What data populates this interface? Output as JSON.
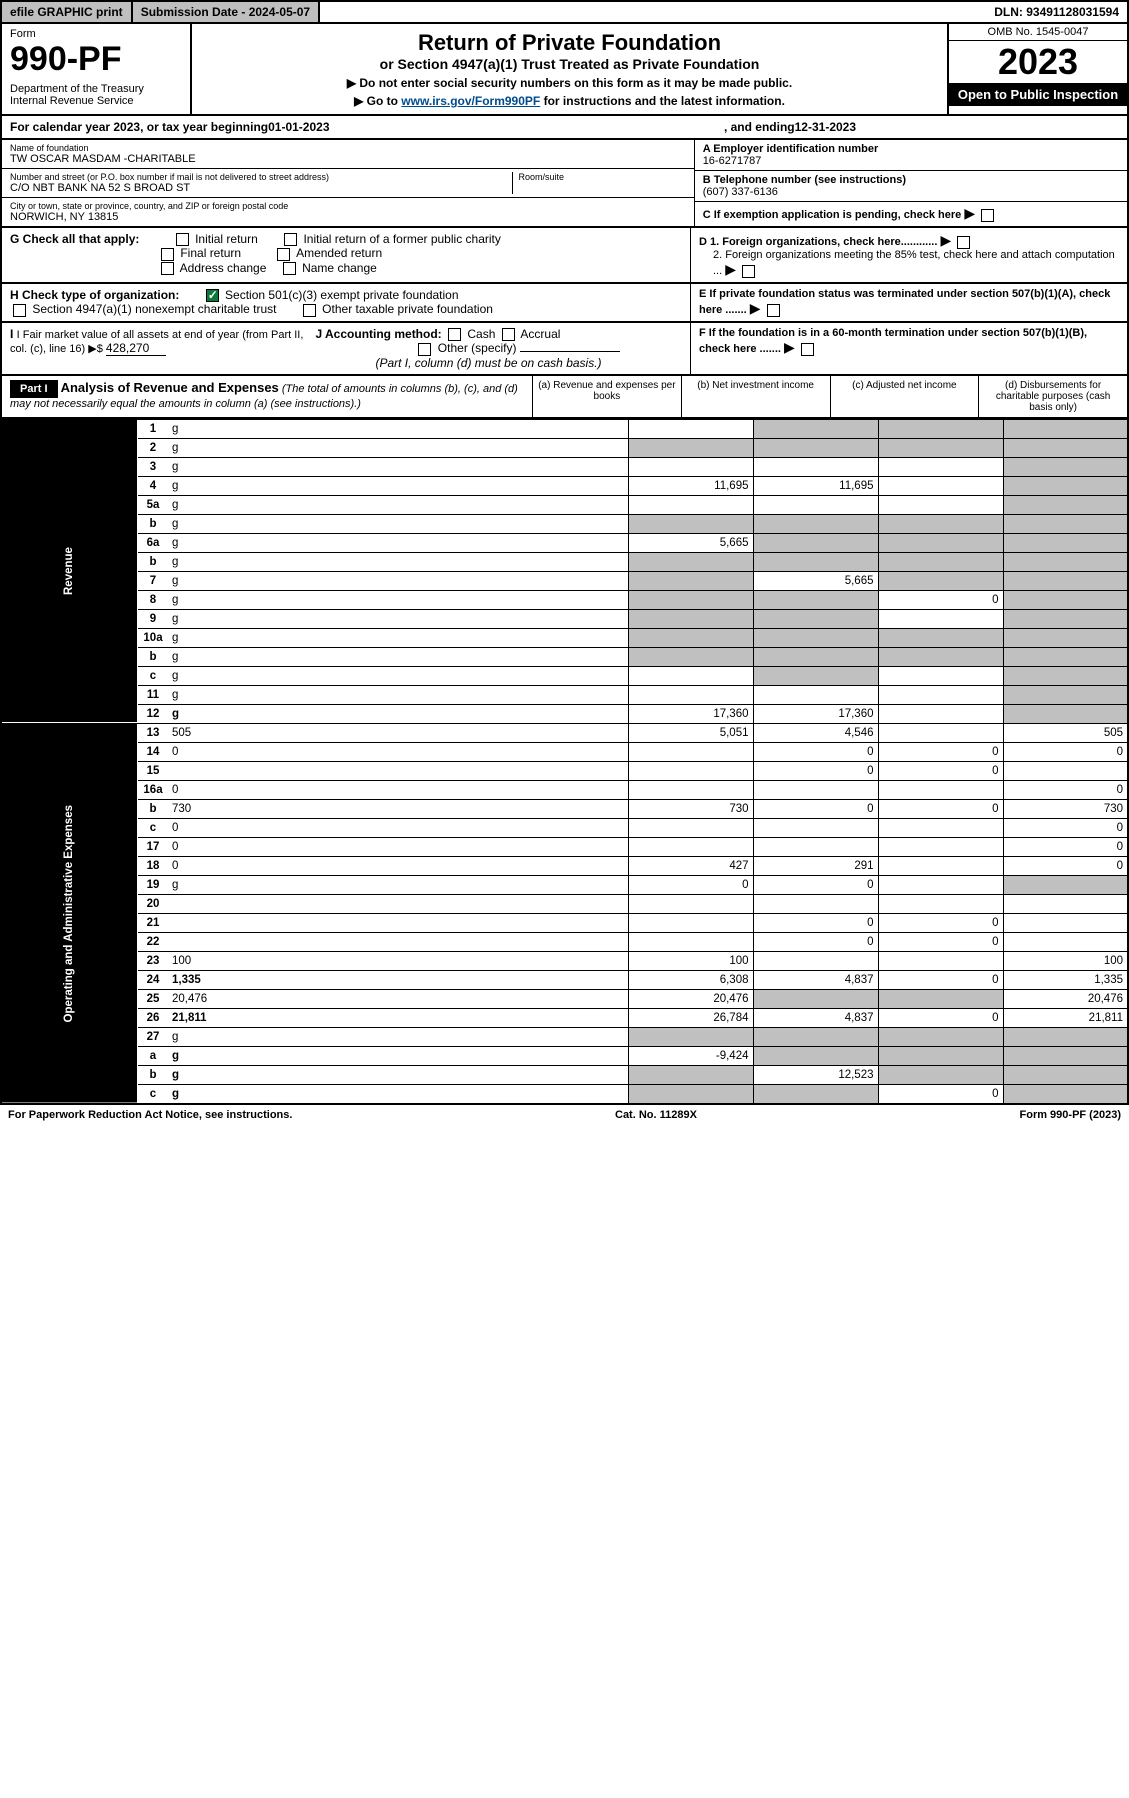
{
  "topbar": {
    "efile": "efile GRAPHIC print",
    "submission": "Submission Date - 2024-05-07",
    "dln": "DLN: 93491128031594"
  },
  "header": {
    "form_label": "Form",
    "form_number": "990-PF",
    "dept": "Department of the Treasury\nInternal Revenue Service",
    "title1": "Return of Private Foundation",
    "title2": "or Section 4947(a)(1) Trust Treated as Private Foundation",
    "instr1": "▶ Do not enter social security numbers on this form as it may be made public.",
    "instr2_prefix": "▶ Go to ",
    "instr2_link": "www.irs.gov/Form990PF",
    "instr2_suffix": " for instructions and the latest information.",
    "omb": "OMB No. 1545-0047",
    "year": "2023",
    "open_public": "Open to Public Inspection"
  },
  "calendar": {
    "prefix": "For calendar year 2023, or tax year beginning ",
    "begin": "01-01-2023",
    "mid": ", and ending ",
    "end": "12-31-2023"
  },
  "info": {
    "name_label": "Name of foundation",
    "name": "TW OSCAR MASDAM -CHARITABLE",
    "addr_label": "Number and street (or P.O. box number if mail is not delivered to street address)",
    "addr": "C/O NBT BANK NA 52 S BROAD ST",
    "room_label": "Room/suite",
    "city_label": "City or town, state or province, country, and ZIP or foreign postal code",
    "city": "NORWICH, NY  13815",
    "ein_label": "A Employer identification number",
    "ein": "16-6271787",
    "phone_label": "B Telephone number (see instructions)",
    "phone": "(607) 337-6136",
    "c_label": "C If exemption application is pending, check here",
    "d1": "D 1. Foreign organizations, check here............",
    "d2": "2. Foreign organizations meeting the 85% test, check here and attach computation ...",
    "e_label": "E  If private foundation status was terminated under section 507(b)(1)(A), check here .......",
    "f_label": "F  If the foundation is in a 60-month termination under section 507(b)(1)(B), check here ......."
  },
  "g": {
    "label": "G Check all that apply:",
    "opts": [
      "Initial return",
      "Initial return of a former public charity",
      "Final return",
      "Amended return",
      "Address change",
      "Name change"
    ]
  },
  "h": {
    "label": "H Check type of organization:",
    "opt1": "Section 501(c)(3) exempt private foundation",
    "opt2": "Section 4947(a)(1) nonexempt charitable trust",
    "opt3": "Other taxable private foundation"
  },
  "i": {
    "label": "I Fair market value of all assets at end of year (from Part II, col. (c), line 16) ▶$ ",
    "value": "428,270"
  },
  "j": {
    "label": "J Accounting method:",
    "cash": "Cash",
    "accrual": "Accrual",
    "other": "Other (specify)",
    "note": "(Part I, column (d) must be on cash basis.)"
  },
  "part1": {
    "title": "Part I",
    "heading": "Analysis of Revenue and Expenses",
    "sub": " (The total of amounts in columns (b), (c), and (d) may not necessarily equal the amounts in column (a) (see instructions).)",
    "cols": [
      "(a)   Revenue and expenses per books",
      "(b)   Net investment income",
      "(c)   Adjusted net income",
      "(d)   Disbursements for charitable purposes (cash basis only)"
    ]
  },
  "rows": [
    {
      "n": "1",
      "d": "g",
      "a": "",
      "b": "g",
      "c": "g"
    },
    {
      "n": "2",
      "d": "g",
      "a": "g",
      "b": "g",
      "c": "g"
    },
    {
      "n": "3",
      "d": "g",
      "a": "",
      "b": "",
      "c": ""
    },
    {
      "n": "4",
      "d": "g",
      "a": "11,695",
      "b": "11,695",
      "c": ""
    },
    {
      "n": "5a",
      "d": "g",
      "a": "",
      "b": "",
      "c": ""
    },
    {
      "n": "b",
      "d": "g",
      "a": "g",
      "b": "g",
      "c": "g"
    },
    {
      "n": "6a",
      "d": "g",
      "a": "5,665",
      "b": "g",
      "c": "g"
    },
    {
      "n": "b",
      "d": "g",
      "a": "g",
      "b": "g",
      "c": "g"
    },
    {
      "n": "7",
      "d": "g",
      "a": "g",
      "b": "5,665",
      "c": "g"
    },
    {
      "n": "8",
      "d": "g",
      "a": "g",
      "b": "g",
      "c": "0"
    },
    {
      "n": "9",
      "d": "g",
      "a": "g",
      "b": "g",
      "c": ""
    },
    {
      "n": "10a",
      "d": "g",
      "a": "g",
      "b": "g",
      "c": "g"
    },
    {
      "n": "b",
      "d": "g",
      "a": "g",
      "b": "g",
      "c": "g"
    },
    {
      "n": "c",
      "d": "g",
      "a": "",
      "b": "g",
      "c": ""
    },
    {
      "n": "11",
      "d": "g",
      "a": "",
      "b": "",
      "c": ""
    },
    {
      "n": "12",
      "d": "g",
      "a": "17,360",
      "b": "17,360",
      "c": "",
      "bold": true
    },
    {
      "n": "13",
      "d": "505",
      "a": "5,051",
      "b": "4,546",
      "c": ""
    },
    {
      "n": "14",
      "d": "0",
      "a": "",
      "b": "0",
      "c": "0"
    },
    {
      "n": "15",
      "d": "",
      "a": "",
      "b": "0",
      "c": "0"
    },
    {
      "n": "16a",
      "d": "0",
      "a": "",
      "b": "",
      "c": ""
    },
    {
      "n": "b",
      "d": "730",
      "a": "730",
      "b": "0",
      "c": "0"
    },
    {
      "n": "c",
      "d": "0",
      "a": "",
      "b": "",
      "c": ""
    },
    {
      "n": "17",
      "d": "0",
      "a": "",
      "b": "",
      "c": ""
    },
    {
      "n": "18",
      "d": "0",
      "a": "427",
      "b": "291",
      "c": ""
    },
    {
      "n": "19",
      "d": "g",
      "a": "0",
      "b": "0",
      "c": ""
    },
    {
      "n": "20",
      "d": "",
      "a": "",
      "b": "",
      "c": ""
    },
    {
      "n": "21",
      "d": "",
      "a": "",
      "b": "0",
      "c": "0"
    },
    {
      "n": "22",
      "d": "",
      "a": "",
      "b": "0",
      "c": "0"
    },
    {
      "n": "23",
      "d": "100",
      "a": "100",
      "b": "",
      "c": ""
    },
    {
      "n": "24",
      "d": "1,335",
      "a": "6,308",
      "b": "4,837",
      "c": "0",
      "bold": true
    },
    {
      "n": "25",
      "d": "20,476",
      "a": "20,476",
      "b": "g",
      "c": "g"
    },
    {
      "n": "26",
      "d": "21,811",
      "a": "26,784",
      "b": "4,837",
      "c": "0",
      "bold": true
    },
    {
      "n": "27",
      "d": "g",
      "a": "g",
      "b": "g",
      "c": "g"
    },
    {
      "n": "a",
      "d": "g",
      "a": "-9,424",
      "b": "g",
      "c": "g",
      "bold": true
    },
    {
      "n": "b",
      "d": "g",
      "a": "g",
      "b": "12,523",
      "c": "g",
      "bold": true
    },
    {
      "n": "c",
      "d": "g",
      "a": "g",
      "b": "g",
      "c": "0",
      "bold": true
    }
  ],
  "sidelabels": {
    "revenue": "Revenue",
    "expenses": "Operating and Administrative Expenses"
  },
  "footer": {
    "left": "For Paperwork Reduction Act Notice, see instructions.",
    "mid": "Cat. No. 11289X",
    "right": "Form 990-PF (2023)"
  }
}
